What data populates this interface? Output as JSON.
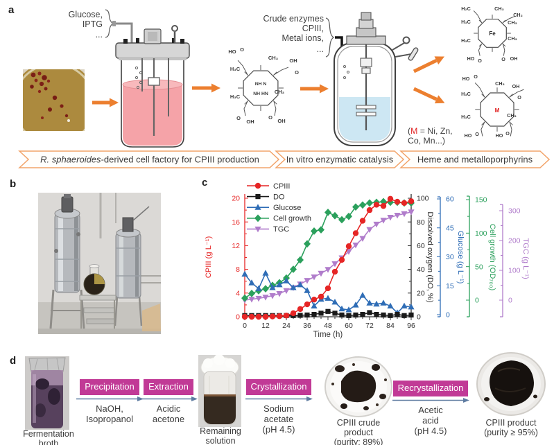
{
  "figure": {
    "panel_a": {
      "label": "a",
      "feed_lines": [
        "Glucose,",
        "IPTG",
        "..."
      ],
      "enzyme_lines": [
        "Crude enzymes",
        "CPIII,",
        "Metal ions,",
        "..."
      ],
      "metal_note": {
        "open": "(",
        "m": "M",
        "rest": " = Ni, Zn,",
        "line2": "Co, Mn...)"
      },
      "banners": [
        {
          "italic": "R. sphaeroides",
          "rest": "-derived cell factory for CPIII production"
        },
        {
          "text": "In vitro enzymatic catalysis"
        },
        {
          "text": "Heme and metalloporphyrins"
        }
      ],
      "structures": {
        "cpiii": {
          "tl1": "HO",
          "tl2": "O",
          "t": "CH₃",
          "tr1": "OH",
          "tr2": "O",
          "l1": "H₃C",
          "l2": "H₃C",
          "r1": "CH₃",
          "bl1": "O",
          "bl2": "OH",
          "br1": "O",
          "br2": "OH",
          "center1": "NH  N",
          "center2": "NH  HN"
        },
        "heme": {
          "tl": "H₂C",
          "t": "CH₃",
          "tr": "CH₂",
          "l1": "H₃C",
          "l2": "H₃C",
          "r1": "CH₃",
          "r2": "CH₃",
          "bl1": "HO",
          "bl2": "O",
          "br1": "O",
          "br2": "OH",
          "center": "Fe"
        },
        "metallo": {
          "tl1": "HO",
          "tl2": "O",
          "t": "CH₃",
          "tr1": "OH",
          "tr2": "O",
          "l1": "H₃C",
          "l2": "H₃C",
          "r1": "CH₃",
          "bl1": "HO",
          "bl2": "O",
          "br1": "HO",
          "br2": "O",
          "center": "M"
        }
      }
    },
    "panel_b": {
      "label": "b"
    },
    "panel_c": {
      "label": "c"
    },
    "panel_d": {
      "label": "d",
      "photos": [
        {
          "caption": "Fermentation\nbroth"
        },
        {
          "caption": "Remaining\nsolution"
        },
        {
          "caption": "CPIII crude\nproduct\n(purity: 89%)"
        },
        {
          "caption": "CPIII product\n(purity ≥ 95%)"
        }
      ],
      "steps": [
        {
          "title": "Precipitation",
          "detail": "NaOH,\nIsopropanol"
        },
        {
          "title": "Extraction",
          "detail": "Acidic\nacetone"
        },
        {
          "title": "Crystallization",
          "detail": "Sodium\nacetate\n(pH 4.5)"
        },
        {
          "title": "Recrystallization",
          "detail": "Acetic\nacid\n(pH 4.5)"
        }
      ]
    },
    "colors": {
      "accent_orange": "#ec7f2f",
      "banner_outline": "#f2a369",
      "step_box_magenta": "#c13a96",
      "step_arrow_blue": "#5f7ca1",
      "cpiii_red": "#e62525",
      "do_black": "#1a1a1a",
      "glucose_blue": "#2f6db6",
      "cell_green": "#2ba05c",
      "tgc_purple": "#b07ccb"
    }
  },
  "chart_data": {
    "type": "line",
    "x": [
      0,
      4,
      8,
      12,
      16,
      20,
      24,
      28,
      32,
      36,
      40,
      44,
      48,
      52,
      56,
      60,
      64,
      68,
      72,
      76,
      80,
      84,
      88,
      92,
      96
    ],
    "xaxis": {
      "label": "Time (h)",
      "range": [
        0,
        96
      ],
      "ticks": [
        0,
        12,
        24,
        36,
        48,
        60,
        72,
        84,
        96
      ],
      "minor": 4
    },
    "axes": [
      {
        "id": "cpiii",
        "label": "CPIII (g L⁻¹)",
        "color": "#e62525",
        "range": [
          0,
          20
        ],
        "ticks": [
          0,
          4,
          8,
          12,
          16,
          20
        ],
        "minor": 2
      },
      {
        "id": "do",
        "label": "Dissolved oxygen (DO, %)",
        "color": "#2b2b2b",
        "range": [
          0,
          100
        ],
        "ticks": [
          0,
          20,
          40,
          60,
          80,
          100
        ],
        "minor": 10
      },
      {
        "id": "glucose",
        "label": "Glucose (g L⁻¹)",
        "color": "#2f6db6",
        "range": [
          0,
          60
        ],
        "ticks": [
          0,
          15,
          30,
          45,
          60
        ],
        "minor": 7.5
      },
      {
        "id": "od700",
        "label": "Cell growth (OD₇₀₀)",
        "color": "#2ba05c",
        "range": [
          0,
          150
        ],
        "ticks": [
          0,
          50,
          100,
          150
        ],
        "minor": 25
      },
      {
        "id": "tgc",
        "label": "TGC (g L⁻¹)",
        "color": "#b07ccb",
        "range": [
          0,
          300
        ],
        "ticks": [
          0,
          100,
          200,
          300
        ],
        "minor": 50
      }
    ],
    "legend_position": "top-left-inside",
    "grid": false,
    "series": [
      {
        "name": "CPIII",
        "axis": "cpiii",
        "marker": "circle",
        "color": "#e62525",
        "values": [
          0,
          0,
          0,
          0,
          0.05,
          0.1,
          0.2,
          0.6,
          1.3,
          2.1,
          2.9,
          3.4,
          4.8,
          7.6,
          9.6,
          11.9,
          14.1,
          16.2,
          18.0,
          18.9,
          18.7,
          19.9,
          19.4,
          19.2,
          19.5
        ]
      },
      {
        "name": "DO",
        "axis": "do",
        "marker": "square",
        "color": "#1a1a1a",
        "values": [
          1,
          1,
          1,
          1,
          1,
          1,
          1,
          1,
          1.2,
          1.5,
          2,
          3,
          4.5,
          3,
          1.5,
          1,
          1.5,
          2,
          3.5,
          2,
          1.5,
          1,
          2,
          1,
          1.5
        ]
      },
      {
        "name": "Glucose",
        "axis": "glucose",
        "marker": "triangle-up",
        "color": "#2f6db6",
        "values": [
          21,
          16.5,
          13.5,
          21.5,
          14,
          15.5,
          17.5,
          14,
          15.5,
          12.5,
          4.5,
          8,
          8.5,
          6.5,
          3,
          2.5,
          5,
          10,
          6,
          5.5,
          6,
          4.5,
          1,
          4.5,
          4
        ]
      },
      {
        "name": "Cell growth",
        "axis": "od700",
        "marker": "diamond",
        "color": "#2ba05c",
        "values": [
          3,
          10,
          14,
          17,
          22,
          26,
          33,
          46,
          60,
          84,
          103,
          105,
          131,
          126,
          120,
          125,
          139,
          142,
          145,
          146,
          147,
          146,
          146,
          145,
          145
        ]
      },
      {
        "name": "TGC",
        "axis": "tgc",
        "marker": "triangle-down",
        "color": "#b07ccb",
        "values": [
          0,
          3,
          6,
          10,
          15,
          22,
          32,
          42,
          54,
          66,
          78,
          90,
          103,
          122,
          142,
          163,
          185,
          207,
          237,
          255,
          268,
          278,
          285,
          290,
          296
        ]
      }
    ]
  }
}
